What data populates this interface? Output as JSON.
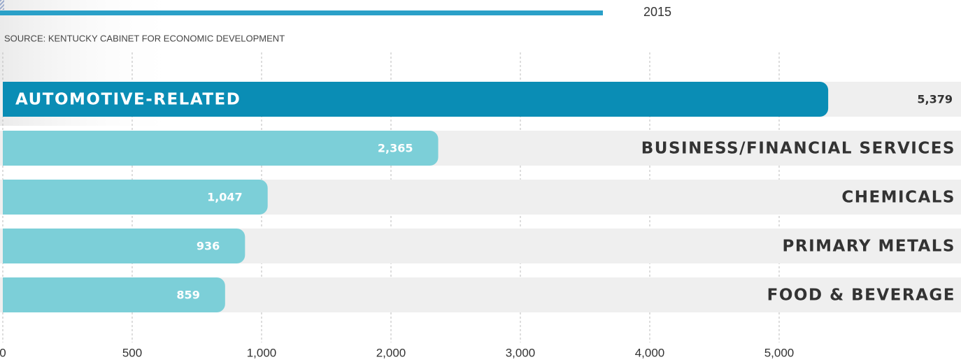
{
  "chart_data": {
    "type": "bar",
    "orientation": "horizontal",
    "subtitle": "2015",
    "source": "SOURCE: KENTUCKY CABINET FOR ECONOMIC DEVELOPMENT",
    "categories": [
      "AUTOMOTIVE-RELATED",
      "BUSINESS/FINANCIAL SERVICES",
      "CHEMICALS",
      "PRIMARY METALS",
      "FOOD & BEVERAGE"
    ],
    "values": [
      5379,
      2365,
      1047,
      936,
      859
    ],
    "value_labels": [
      "5,379",
      "2,365",
      "1,047",
      "936",
      "859"
    ],
    "colors": [
      "#0a8db5",
      "#7ccfd8",
      "#7ccfd8",
      "#7ccfd8",
      "#7ccfd8"
    ],
    "xlim": [
      0,
      6000
    ],
    "xticks": [
      0,
      500,
      {
        "value": 1000,
        "label": "1,000"
      },
      {
        "value": 2000,
        "label": "2,000"
      },
      {
        "value": 3000,
        "label": "3,000"
      },
      {
        "value": 4000,
        "label": "4,000"
      },
      {
        "value": 5000,
        "label": "5,000"
      }
    ],
    "grid": true
  }
}
